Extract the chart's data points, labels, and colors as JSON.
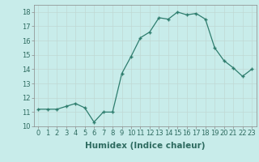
{
  "x": [
    0,
    1,
    2,
    3,
    4,
    5,
    6,
    7,
    8,
    9,
    10,
    11,
    12,
    13,
    14,
    15,
    16,
    17,
    18,
    19,
    20,
    21,
    22,
    23
  ],
  "y": [
    11.2,
    11.2,
    11.2,
    11.4,
    11.6,
    11.3,
    10.3,
    11.0,
    11.0,
    13.7,
    14.9,
    16.2,
    16.6,
    17.6,
    17.5,
    18.0,
    17.8,
    17.9,
    17.5,
    15.5,
    14.6,
    14.1,
    13.5,
    14.0
  ],
  "xlabel": "Humidex (Indice chaleur)",
  "ylim": [
    10,
    18.5
  ],
  "xlim": [
    -0.5,
    23.5
  ],
  "line_color": "#2e7d6e",
  "bg_color": "#c8ecea",
  "grid_color": "#c0d8d4",
  "tick_label_fontsize": 6.0,
  "xlabel_fontsize": 7.5,
  "yticks": [
    10,
    11,
    12,
    13,
    14,
    15,
    16,
    17,
    18
  ]
}
